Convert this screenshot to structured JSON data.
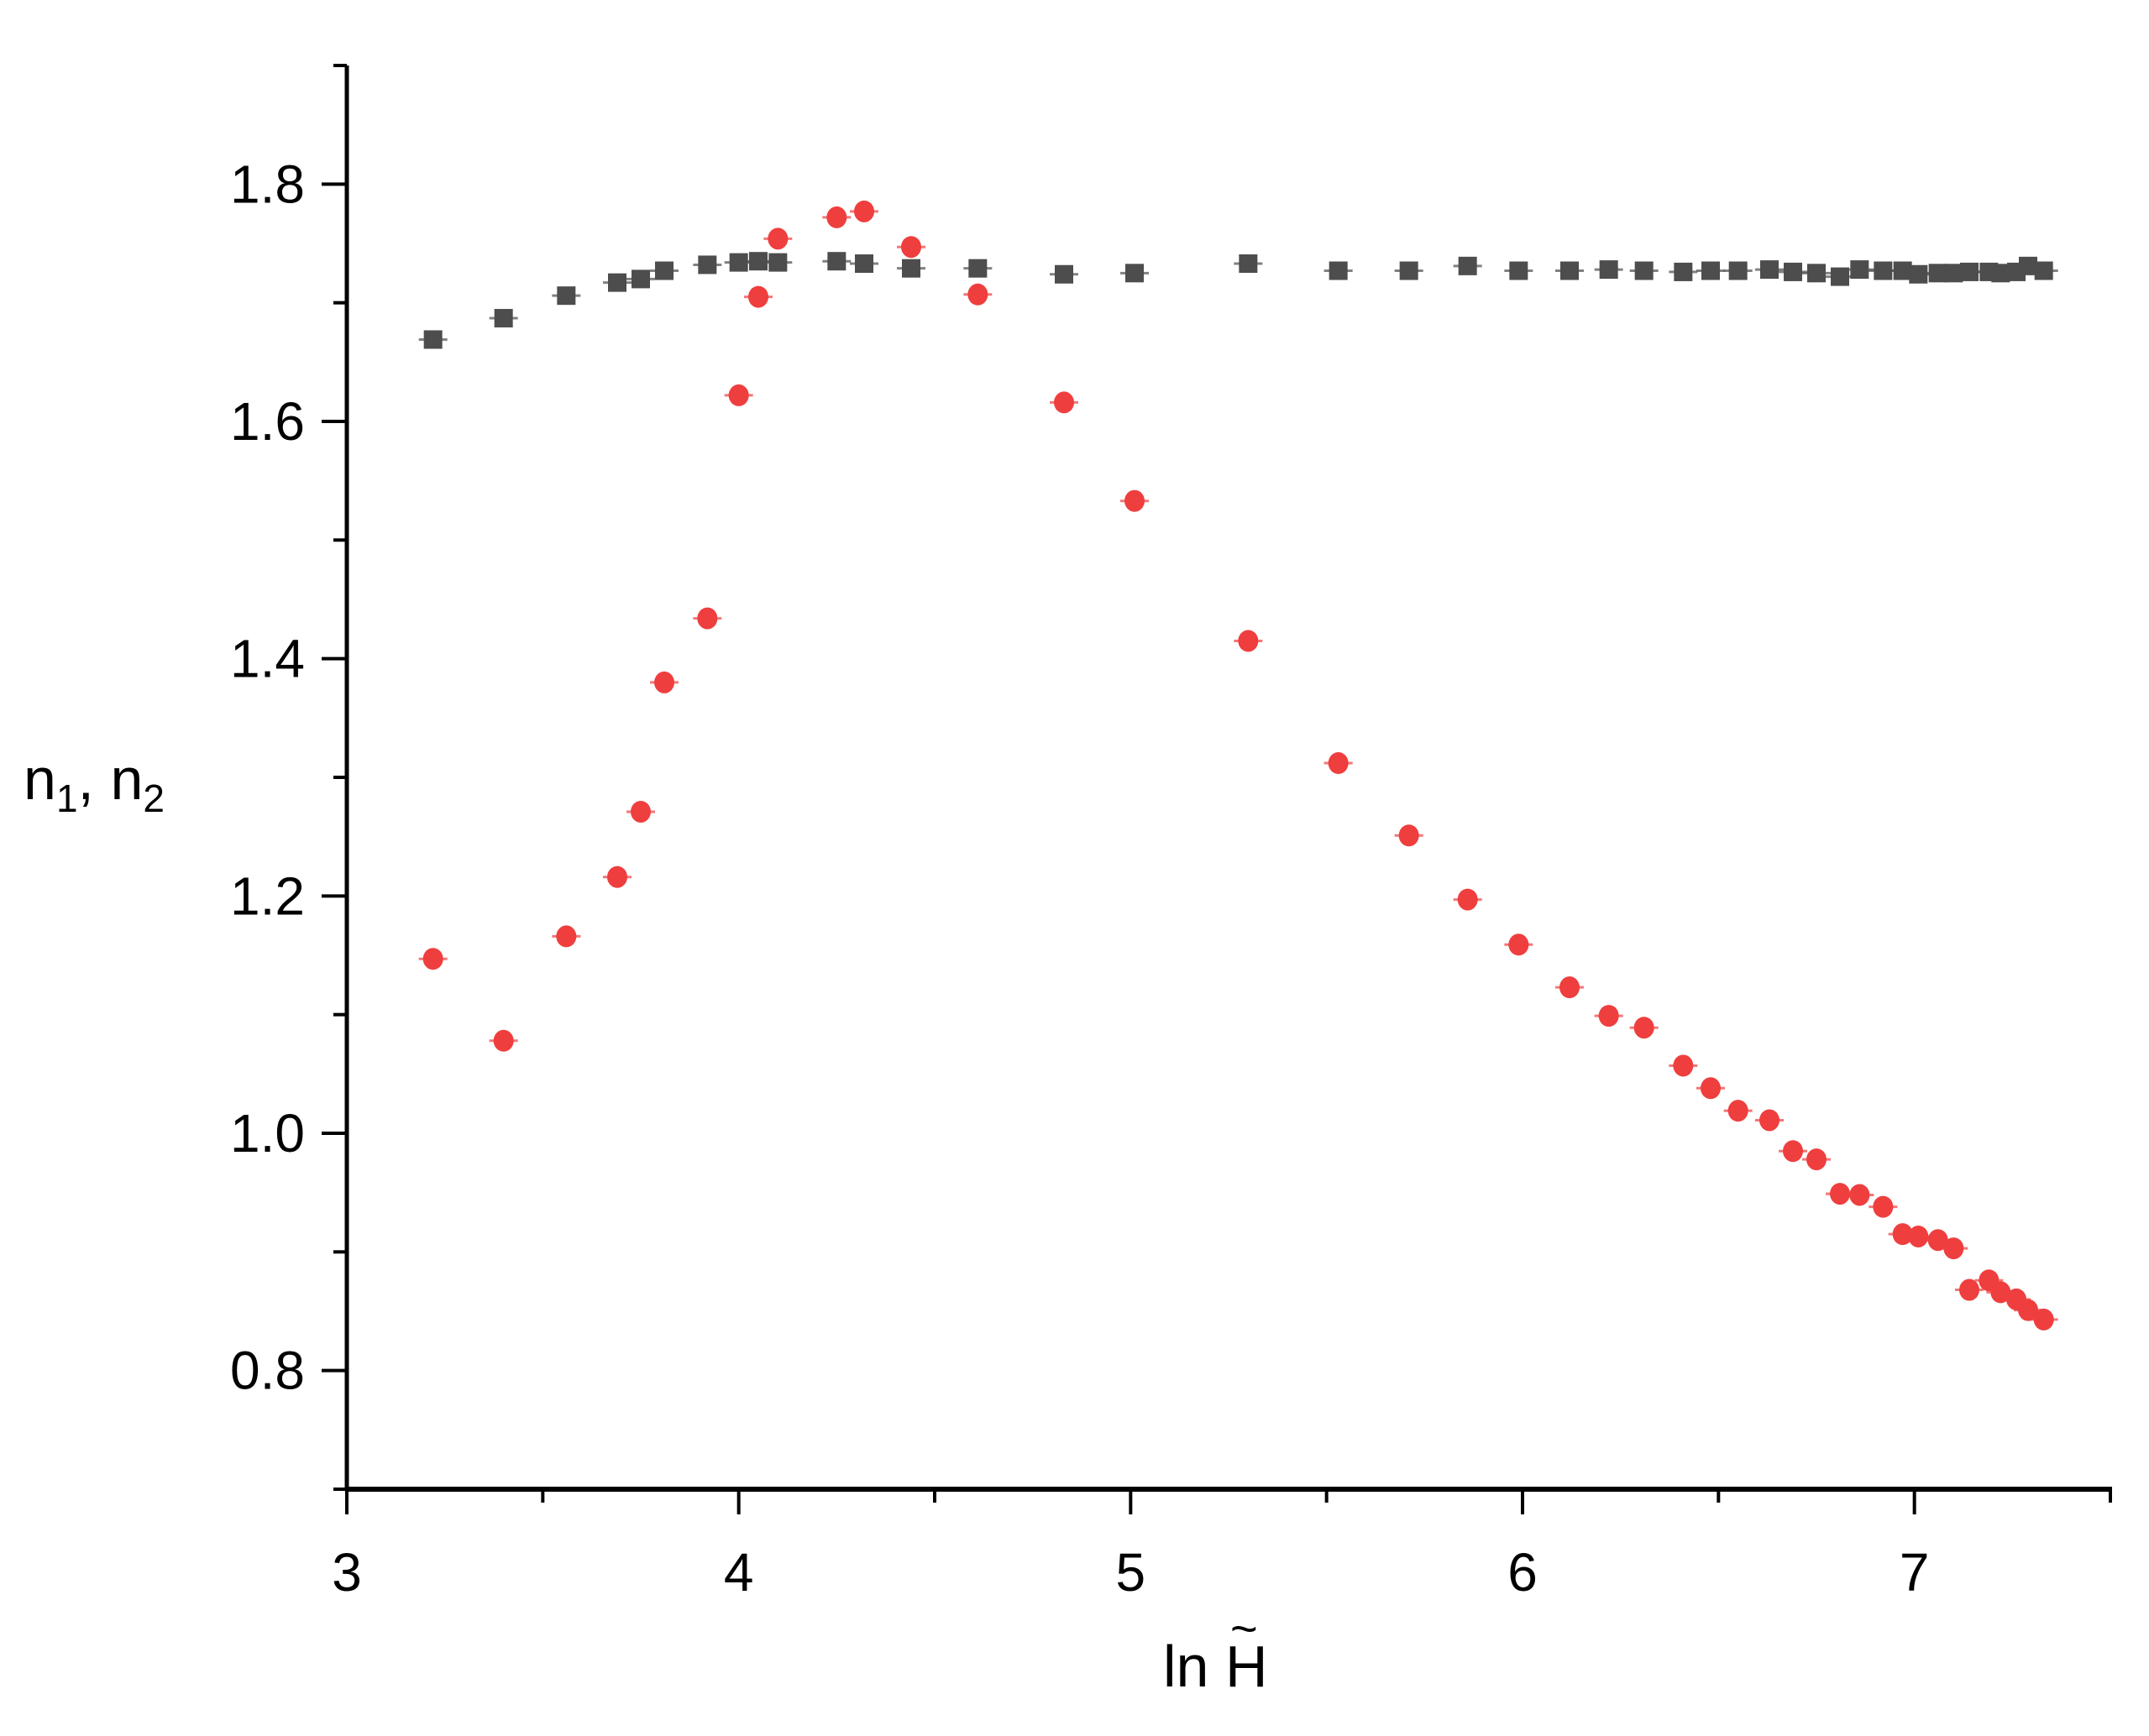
{
  "chart_data": {
    "type": "scatter",
    "title": "",
    "xlabel": "ln H̃",
    "ylabel": "n1, n2",
    "xlim": [
      3,
      7.5
    ],
    "ylim": [
      0.7,
      1.9
    ],
    "x_ticks": [
      3,
      4,
      5,
      6,
      7
    ],
    "y_ticks": [
      0.8,
      1.0,
      1.2,
      1.4,
      1.6,
      1.8
    ],
    "grid": false,
    "legend": null,
    "series": [
      {
        "name": "n1",
        "marker": "square",
        "color": "#4d4d4d",
        "x": [
          3.22,
          3.4,
          3.56,
          3.69,
          3.75,
          3.81,
          3.92,
          4.0,
          4.05,
          4.1,
          4.25,
          4.32,
          4.44,
          4.61,
          4.83,
          5.01,
          5.3,
          5.53,
          5.71,
          5.86,
          5.99,
          6.12,
          6.22,
          6.31,
          6.41,
          6.48,
          6.55,
          6.63,
          6.69,
          6.75,
          6.81,
          6.86,
          6.92,
          6.97,
          7.01,
          7.06,
          7.1,
          7.14,
          7.19,
          7.22,
          7.26,
          7.29,
          7.33
        ],
        "values": [
          1.669,
          1.687,
          1.706,
          1.717,
          1.72,
          1.727,
          1.732,
          1.734,
          1.735,
          1.734,
          1.735,
          1.733,
          1.729,
          1.729,
          1.724,
          1.725,
          1.733,
          1.727,
          1.727,
          1.731,
          1.727,
          1.727,
          1.728,
          1.727,
          1.726,
          1.727,
          1.727,
          1.728,
          1.726,
          1.725,
          1.722,
          1.728,
          1.727,
          1.727,
          1.724,
          1.725,
          1.725,
          1.726,
          1.726,
          1.725,
          1.726,
          1.731,
          1.727
        ]
      },
      {
        "name": "n2",
        "marker": "circle",
        "color": "#ef3e3e",
        "x": [
          3.22,
          3.4,
          3.56,
          3.69,
          3.75,
          3.81,
          3.92,
          4.0,
          4.05,
          4.1,
          4.25,
          4.32,
          4.44,
          4.61,
          4.83,
          5.01,
          5.3,
          5.53,
          5.71,
          5.86,
          5.99,
          6.12,
          6.22,
          6.31,
          6.41,
          6.48,
          6.55,
          6.63,
          6.69,
          6.75,
          6.81,
          6.86,
          6.92,
          6.97,
          7.01,
          7.06,
          7.1,
          7.14,
          7.19,
          7.22,
          7.26,
          7.29,
          7.33
        ],
        "values": [
          1.147,
          1.078,
          1.166,
          1.216,
          1.271,
          1.38,
          1.434,
          1.622,
          1.705,
          1.754,
          1.772,
          1.777,
          1.747,
          1.707,
          1.616,
          1.533,
          1.415,
          1.312,
          1.251,
          1.197,
          1.159,
          1.123,
          1.099,
          1.089,
          1.057,
          1.038,
          1.019,
          1.011,
          0.985,
          0.978,
          0.949,
          0.948,
          0.938,
          0.915,
          0.913,
          0.91,
          0.903,
          0.868,
          0.876,
          0.866,
          0.86,
          0.851,
          0.843
        ]
      }
    ]
  },
  "labels": {
    "y_main_1": "n",
    "y_sub_1": "1",
    "y_sep": ", ",
    "y_main_2": "n",
    "y_sub_2": "2",
    "x_prefix": "ln ",
    "x_var": "H",
    "x_tilde": "~"
  }
}
